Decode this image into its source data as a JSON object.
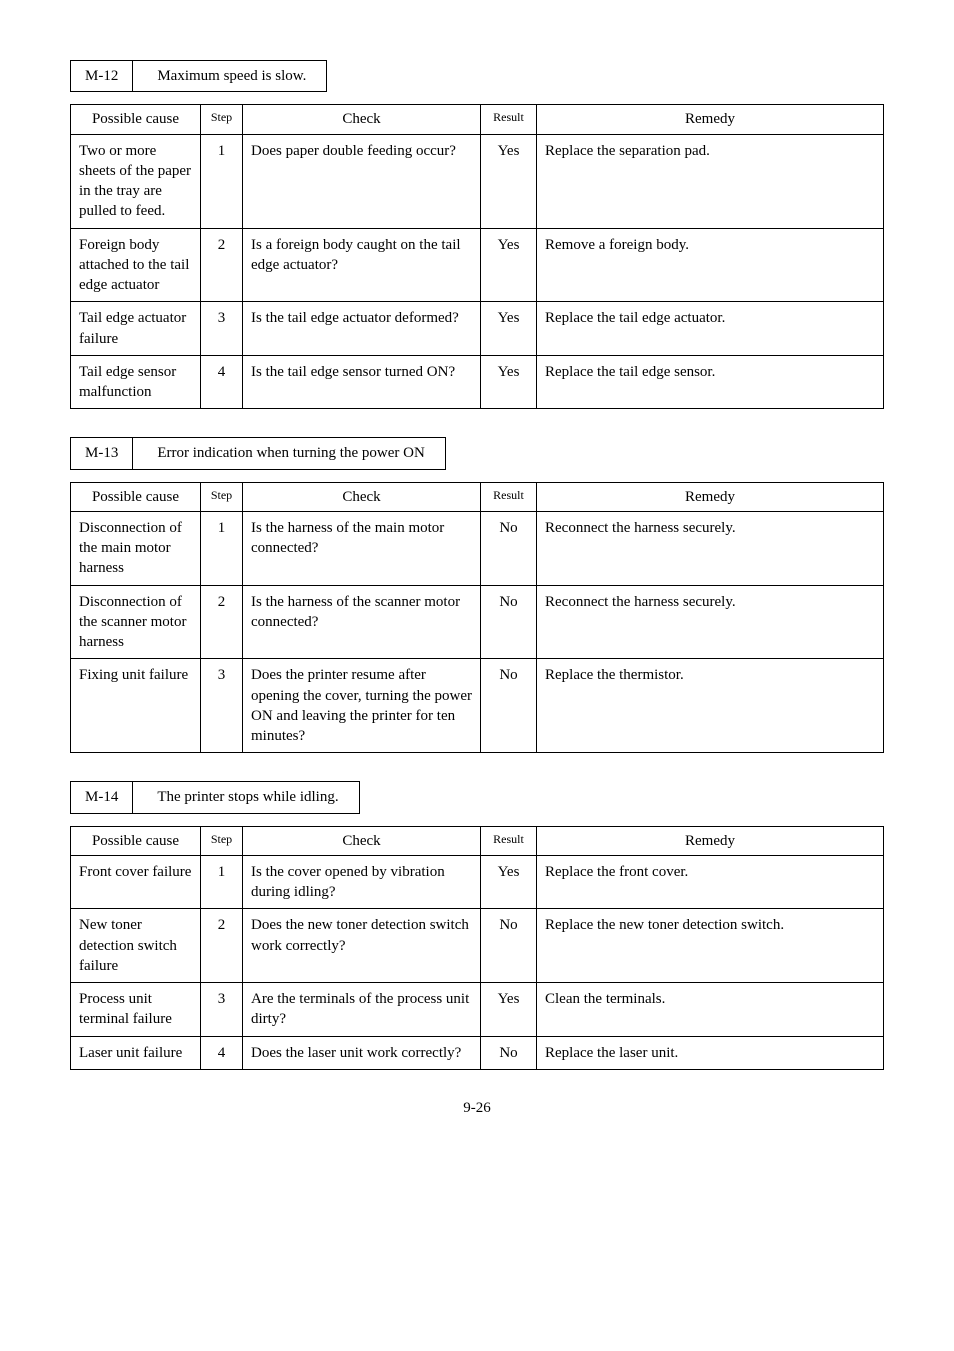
{
  "page_number": "9-26",
  "sections": [
    {
      "code": "M-12",
      "title": "Maximum speed is slow.",
      "headers": {
        "cause": "Possible cause",
        "step": "Step",
        "check": "Check",
        "result": "Result",
        "remedy": "Remedy"
      },
      "rows": [
        {
          "cause": "Two or more sheets of the paper in the tray are pulled to feed.",
          "step": "1",
          "check": "Does paper double feeding occur?",
          "result": "Yes",
          "remedy": "Replace the separation pad."
        },
        {
          "cause": "Foreign body attached to the tail edge actuator",
          "step": "2",
          "check": "Is a foreign body caught on the tail edge actuator?",
          "result": "Yes",
          "remedy": "Remove a foreign body."
        },
        {
          "cause": "Tail edge actuator failure",
          "step": "3",
          "check": "Is the tail edge actuator deformed?",
          "result": "Yes",
          "remedy": "Replace the tail edge actuator."
        },
        {
          "cause": "Tail edge sensor malfunction",
          "step": "4",
          "check": "Is the tail edge sensor turned ON?",
          "result": "Yes",
          "remedy": "Replace the tail edge sensor."
        }
      ]
    },
    {
      "code": "M-13",
      "title": "Error indication when turning the power ON",
      "headers": {
        "cause": "Possible cause",
        "step": "Step",
        "check": "Check",
        "result": "Result",
        "remedy": "Remedy"
      },
      "rows": [
        {
          "cause": "Disconnection of the main motor harness",
          "step": "1",
          "check": "Is the harness of the main motor connected?",
          "result": "No",
          "remedy": "Reconnect the harness securely."
        },
        {
          "cause": "Disconnection of the scanner motor harness",
          "step": "2",
          "check": "Is the harness of the scanner motor connected?",
          "result": "No",
          "remedy": "Reconnect the harness securely."
        },
        {
          "cause": "Fixing unit failure",
          "step": "3",
          "check": "Does the printer resume after opening the cover, turning the power ON and leaving the printer for ten minutes?",
          "result": "No",
          "remedy": "Replace the thermistor."
        }
      ]
    },
    {
      "code": "M-14",
      "title": "The printer stops while idling.",
      "headers": {
        "cause": "Possible cause",
        "step": "Step",
        "check": "Check",
        "result": "Result",
        "remedy": "Remedy"
      },
      "rows": [
        {
          "cause": "Front cover failure",
          "step": "1",
          "check": "Is the cover opened by vibration during idling?",
          "result": "Yes",
          "remedy": "Replace the front cover."
        },
        {
          "cause": "New toner detection switch failure",
          "step": "2",
          "check": "Does the new toner detection switch work correctly?",
          "result": "No",
          "remedy": "Replace the new toner detection switch."
        },
        {
          "cause": "Process unit terminal failure",
          "step": "3",
          "check": "Are the terminals of the process unit dirty?",
          "result": "Yes",
          "remedy": "Clean the terminals."
        },
        {
          "cause": "Laser unit failure",
          "step": "4",
          "check": "Does the laser unit work correctly?",
          "result": "No",
          "remedy": "Replace the laser unit."
        }
      ]
    }
  ]
}
